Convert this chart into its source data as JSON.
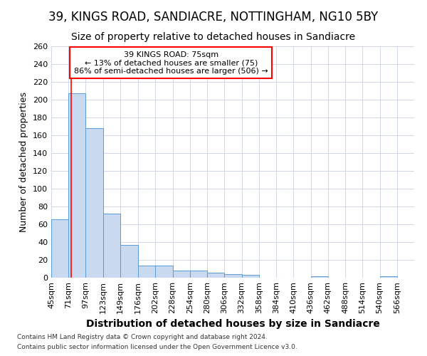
{
  "title": "39, KINGS ROAD, SANDIACRE, NOTTINGHAM, NG10 5BY",
  "subtitle": "Size of property relative to detached houses in Sandiacre",
  "xlabel": "Distribution of detached houses by size in Sandiacre",
  "ylabel": "Number of detached properties",
  "footnote1": "Contains HM Land Registry data © Crown copyright and database right 2024.",
  "footnote2": "Contains public sector information licensed under the Open Government Licence v3.0.",
  "annotation_line1": "39 KINGS ROAD: 75sqm",
  "annotation_line2": "← 13% of detached houses are smaller (75)",
  "annotation_line3": "86% of semi-detached houses are larger (506) →",
  "bar_color": "#c9d9f0",
  "bar_edge_color": "#5b9bd5",
  "red_line_x": 75,
  "categories": [
    "45sqm",
    "71sqm",
    "97sqm",
    "123sqm",
    "149sqm",
    "176sqm",
    "202sqm",
    "228sqm",
    "254sqm",
    "280sqm",
    "306sqm",
    "332sqm",
    "358sqm",
    "384sqm",
    "410sqm",
    "436sqm",
    "462sqm",
    "488sqm",
    "514sqm",
    "540sqm",
    "566sqm"
  ],
  "bin_edges": [
    45,
    71,
    97,
    123,
    149,
    176,
    202,
    228,
    254,
    280,
    306,
    332,
    358,
    384,
    410,
    436,
    462,
    488,
    514,
    540,
    566,
    592
  ],
  "values": [
    66,
    207,
    168,
    72,
    37,
    14,
    14,
    8,
    8,
    6,
    4,
    3,
    0,
    0,
    0,
    2,
    0,
    0,
    0,
    2,
    0
  ],
  "ylim": [
    0,
    260
  ],
  "yticks": [
    0,
    20,
    40,
    60,
    80,
    100,
    120,
    140,
    160,
    180,
    200,
    220,
    240,
    260
  ],
  "background_color": "#ffffff",
  "grid_color": "#d0d8e8",
  "title_fontsize": 12,
  "subtitle_fontsize": 10,
  "axis_label_fontsize": 9,
  "tick_fontsize": 8,
  "annotation_fontsize": 8,
  "footnote_fontsize": 6.5
}
